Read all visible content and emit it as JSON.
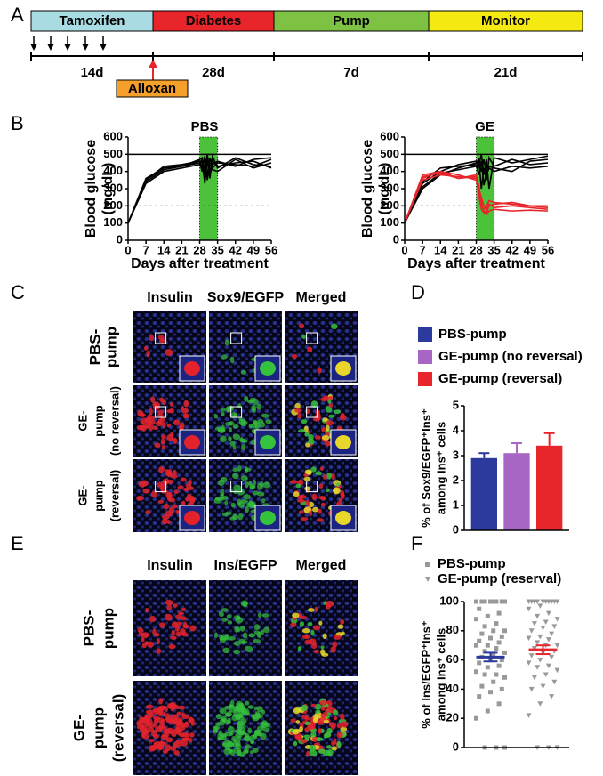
{
  "panel_labels": [
    "A",
    "B",
    "C",
    "D",
    "E",
    "F"
  ],
  "timeline": {
    "phases": [
      "Tamoxifen",
      "Diabetes",
      "Pump",
      "Monitor"
    ],
    "durations": [
      "14d",
      "28d",
      "7d",
      "21d"
    ],
    "marker": "Alloxan"
  },
  "panel_c": {
    "columns": [
      "Insulin",
      "Sox9/EGFP",
      "Merged"
    ],
    "rows": [
      [
        "PBS-",
        "pump"
      ],
      [
        "GE-",
        "pump",
        "(no reversal)"
      ],
      [
        "GE-",
        "pump",
        "(reversal)"
      ]
    ]
  },
  "panel_e": {
    "columns": [
      "Insulin",
      "Ins/EGFP",
      "Merged"
    ],
    "rows": [
      [
        "PBS-",
        "pump"
      ],
      [
        "GE-",
        "pump",
        "(reversal)"
      ]
    ]
  },
  "chart_data": [
    {
      "type": "line",
      "title": "PBS",
      "xlabel": "Days after treatment",
      "ylabel": [
        "Blood glucose",
        "(mg/dL)"
      ],
      "x": [
        0,
        7,
        14,
        21,
        28,
        29,
        30,
        31,
        32,
        33,
        35,
        42,
        49,
        56
      ],
      "series": [
        {
          "color": "#000000",
          "values": [
            100,
            360,
            420,
            440,
            460,
            430,
            350,
            470,
            360,
            490,
            420,
            480,
            440,
            430
          ]
        },
        {
          "color": "#000000",
          "values": [
            100,
            340,
            410,
            430,
            470,
            480,
            330,
            460,
            380,
            440,
            460,
            430,
            470,
            480
          ]
        },
        {
          "color": "#000000",
          "values": [
            100,
            350,
            430,
            440,
            450,
            400,
            490,
            350,
            450,
            410,
            400,
            470,
            420,
            450
          ]
        },
        {
          "color": "#000000",
          "values": [
            100,
            330,
            400,
            420,
            440,
            460,
            380,
            500,
            400,
            460,
            430,
            450,
            460,
            420
          ]
        },
        {
          "color": "#000000",
          "values": [
            100,
            350,
            420,
            430,
            450,
            470,
            420,
            380,
            480,
            420,
            450,
            440,
            430,
            470
          ]
        }
      ],
      "band": [
        28,
        35
      ],
      "band_color": "#4cc23a",
      "reference_lines": [
        {
          "value": 500,
          "style": "solid"
        },
        {
          "value": 200,
          "style": "dashed"
        }
      ],
      "xlim": [
        0,
        56
      ],
      "xticks": [
        0,
        7,
        14,
        21,
        28,
        35,
        42,
        49,
        56
      ],
      "ylim": [
        0,
        600
      ],
      "yticks": [
        0,
        100,
        200,
        300,
        400,
        500,
        600
      ]
    },
    {
      "type": "line",
      "title": "GE",
      "xlabel": "Days after treatment",
      "ylabel": [
        "Blood glucose",
        "(mg/dL)"
      ],
      "x": [
        0,
        7,
        14,
        21,
        28,
        29,
        30,
        31,
        32,
        33,
        35,
        42,
        49,
        56
      ],
      "series": [
        {
          "color": "#000000",
          "values": [
            100,
            330,
            400,
            440,
            460,
            430,
            500,
            380,
            470,
            300,
            480,
            450,
            470,
            490
          ]
        },
        {
          "color": "#000000",
          "values": [
            100,
            300,
            380,
            420,
            450,
            470,
            300,
            420,
            350,
            480,
            430,
            470,
            440,
            450
          ]
        },
        {
          "color": "#000000",
          "values": [
            100,
            340,
            420,
            430,
            440,
            380,
            460,
            320,
            400,
            430,
            420,
            400,
            460,
            470
          ]
        },
        {
          "color": "#000000",
          "values": [
            100,
            310,
            390,
            410,
            430,
            450,
            400,
            470,
            380,
            420,
            400,
            430,
            420,
            430
          ]
        },
        {
          "color": "#e8252a",
          "values": [
            100,
            360,
            400,
            360,
            380,
            300,
            250,
            200,
            180,
            210,
            190,
            200,
            190,
            180
          ]
        },
        {
          "color": "#e8252a",
          "values": [
            100,
            380,
            400,
            380,
            350,
            280,
            220,
            170,
            160,
            200,
            210,
            220,
            200,
            190
          ]
        },
        {
          "color": "#e8252a",
          "values": [
            100,
            350,
            380,
            370,
            360,
            320,
            200,
            180,
            200,
            230,
            220,
            210,
            200,
            200
          ]
        },
        {
          "color": "#e8252a",
          "values": [
            100,
            370,
            390,
            360,
            370,
            260,
            180,
            160,
            150,
            170,
            180,
            170,
            175,
            170
          ]
        }
      ],
      "band": [
        28,
        35
      ],
      "band_color": "#4cc23a",
      "reference_lines": [
        {
          "value": 500,
          "style": "solid"
        },
        {
          "value": 200,
          "style": "dashed"
        }
      ],
      "xlim": [
        0,
        56
      ],
      "xticks": [
        0,
        7,
        14,
        21,
        28,
        35,
        42,
        49,
        56
      ],
      "ylim": [
        0,
        600
      ],
      "yticks": [
        0,
        100,
        200,
        300,
        400,
        500,
        600
      ]
    },
    {
      "type": "bar",
      "ylabel": [
        "% of Sox9/EGFP⁺Ins⁺",
        "among Ins⁺ cells"
      ],
      "categories": [
        "PBS-pump",
        "GE-pump (no reversal)",
        "GE-pump (reversal)"
      ],
      "values": [
        2.9,
        3.1,
        3.4
      ],
      "errors": [
        0.2,
        0.4,
        0.5
      ],
      "colors": [
        "#2b3a9c",
        "#a766c4",
        "#e8252a"
      ],
      "ylim": [
        0,
        5
      ],
      "yticks": [
        0,
        1,
        2,
        3,
        4,
        5
      ]
    },
    {
      "type": "strip",
      "ylabel": [
        "% of Ins/EGFP⁺Ins⁺",
        "among Ins⁺ cells"
      ],
      "series": [
        {
          "name": "PBS-pump",
          "marker": "square",
          "color": "#999999",
          "label_color": "#2b3a9c",
          "mean_color": "#2b3a9c",
          "mean": 62,
          "sem": 3,
          "values": [
            100,
            100,
            100,
            100,
            100,
            100,
            100,
            100,
            95,
            92,
            90,
            88,
            85,
            83,
            80,
            80,
            78,
            76,
            75,
            73,
            72,
            70,
            70,
            68,
            66,
            65,
            64,
            62,
            60,
            60,
            58,
            56,
            55,
            52,
            50,
            50,
            48,
            45,
            42,
            40,
            38,
            35,
            30,
            25,
            20,
            0,
            0,
            0
          ]
        },
        {
          "name": "GE-pump (reserval)",
          "marker": "triangle",
          "color": "#999999",
          "label_color": "#e8252a",
          "mean_color": "#e8252a",
          "mean": 67,
          "sem": 3,
          "values": [
            100,
            100,
            100,
            100,
            100,
            100,
            100,
            100,
            100,
            100,
            97,
            95,
            92,
            90,
            88,
            86,
            85,
            83,
            82,
            80,
            78,
            76,
            75,
            74,
            72,
            70,
            70,
            68,
            66,
            65,
            63,
            62,
            60,
            58,
            56,
            55,
            53,
            50,
            48,
            45,
            42,
            40,
            35,
            30,
            22,
            0,
            0,
            0
          ]
        }
      ],
      "ylim": [
        0,
        100
      ],
      "yticks": [
        0,
        20,
        40,
        60,
        80,
        100
      ]
    }
  ]
}
